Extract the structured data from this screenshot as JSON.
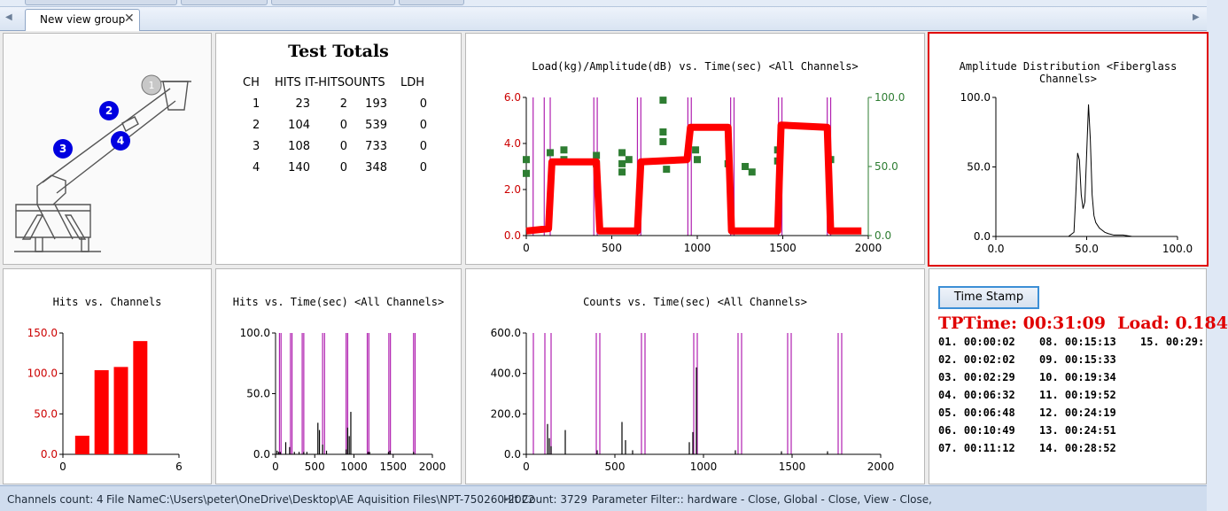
{
  "tab_bar": {
    "active_tab": "New view group",
    "close_glyph": "✕",
    "scroll_left": "◀",
    "scroll_right": "▶"
  },
  "test_totals": {
    "title": "Test Totals",
    "headers": [
      "CH",
      "HITS",
      "IT-HITS",
      "OUNTS",
      "LDH"
    ],
    "rows": [
      [
        "1",
        "23",
        "2",
        "193",
        "0"
      ],
      [
        "2",
        "104",
        "0",
        "539",
        "0"
      ],
      [
        "3",
        "108",
        "0",
        "733",
        "0"
      ],
      [
        "4",
        "140",
        "0",
        "348",
        "0"
      ]
    ]
  },
  "diagram": {
    "sensors": [
      "1",
      "2",
      "3",
      "4"
    ]
  },
  "charts": {
    "load_amp": {
      "title": "Load(kg)/Amplitude(dB) vs. Time(sec) <All Channels>",
      "left_ticks": [
        "6.0",
        "4.0",
        "2.0",
        "0.0"
      ],
      "right_ticks": [
        "100.0",
        "50.0",
        "0.0"
      ],
      "x_ticks": [
        "0",
        "500",
        "1000",
        "1500",
        "2000"
      ],
      "left_color": "#cc0000",
      "right_color": "#2e7d32"
    },
    "amp_dist": {
      "title": "Amplitude Distribution <Fiberglass Channels>",
      "y_ticks": [
        "100.0",
        "50.0",
        "0.0"
      ],
      "x_ticks": [
        "0.0",
        "50.0",
        "100.0"
      ],
      "highlight_color": "#e00000"
    },
    "hits_channels": {
      "title": "Hits vs. Channels",
      "y_ticks": [
        "150.0",
        "100.0",
        "50.0",
        "0.0"
      ],
      "x_ticks": [
        "0",
        "6"
      ]
    },
    "hits_time": {
      "title": "Hits vs. Time(sec) <All Channels>",
      "y_ticks": [
        "100.0",
        "50.0",
        "0.0"
      ],
      "x_ticks": [
        "0",
        "500",
        "1000",
        "1500",
        "2000"
      ]
    },
    "counts_time": {
      "title": "Counts vs. Time(sec) <All Channels>",
      "y_ticks": [
        "600.0",
        "400.0",
        "200.0",
        "0.0"
      ],
      "x_ticks": [
        "0",
        "500",
        "1000",
        "1500",
        "2000"
      ]
    }
  },
  "chart_data": [
    {
      "type": "bar",
      "title": "Hits vs. Channels",
      "categories": [
        "1",
        "2",
        "3",
        "4"
      ],
      "values": [
        23,
        104,
        108,
        140
      ],
      "xlim": [
        0,
        6
      ],
      "ylim": [
        0,
        150
      ],
      "color": "#ff0000"
    },
    {
      "type": "line",
      "title": "Load(kg)/Amplitude(dB) vs. Time(sec) <All Channels>",
      "xlim": [
        0,
        2000
      ],
      "ylim": [
        0,
        6
      ],
      "y2lim": [
        0,
        100
      ],
      "series": [
        {
          "x": [
            0,
            130,
            150,
            410,
            430,
            650,
            670,
            940,
            960,
            1180,
            1200,
            1470,
            1490,
            1760,
            1780,
            1960
          ],
          "values": [
            0.2,
            0.3,
            3.2,
            3.2,
            0.2,
            0.2,
            3.2,
            3.3,
            4.7,
            4.7,
            0.2,
            0.2,
            4.8,
            4.7,
            0.2,
            0.2
          ]
        }
      ]
    },
    {
      "type": "scatter",
      "title": "Load(kg)/Amplitude(dB) vs. Time(sec) <All Channels>",
      "axis": "right",
      "xlim": [
        0,
        2000
      ],
      "ylim": [
        0,
        100
      ],
      "series": [
        {
          "x": [
            0,
            0,
            140,
            220,
            220,
            410,
            410,
            560,
            560,
            560,
            600,
            800,
            800,
            800,
            820,
            990,
            1000,
            1180,
            1280,
            1320,
            1470,
            1470,
            1780
          ],
          "values": [
            55,
            45,
            60,
            55,
            62,
            52,
            58,
            60,
            52,
            46,
            55,
            98,
            75,
            68,
            48,
            62,
            55,
            52,
            50,
            46,
            62,
            54,
            55
          ]
        }
      ]
    },
    {
      "type": "line",
      "title": "Amplitude Distribution <Fiberglass Channels>",
      "xlim": [
        0,
        100
      ],
      "ylim": [
        0,
        100
      ],
      "series": [
        {
          "x": [
            40,
            43,
            44,
            45,
            46,
            47,
            48,
            49,
            50,
            51,
            52,
            53,
            54,
            55,
            56,
            57,
            58,
            60,
            62,
            65,
            70,
            75
          ],
          "values": [
            0,
            3,
            30,
            60,
            55,
            30,
            20,
            25,
            60,
            95,
            70,
            30,
            15,
            10,
            8,
            6,
            5,
            3,
            2,
            1,
            1,
            0
          ]
        }
      ]
    },
    {
      "type": "bar",
      "title": "Hits vs. Time(sec) <All Channels>",
      "xlim": [
        0,
        2000
      ],
      "ylim": [
        0,
        100
      ],
      "x": [
        20,
        40,
        60,
        130,
        180,
        240,
        300,
        360,
        400,
        540,
        560,
        600,
        650,
        900,
        920,
        940,
        960,
        1180,
        1200,
        1440,
        1460,
        1760
      ],
      "values": [
        3,
        2,
        2,
        10,
        6,
        2,
        2,
        2,
        2,
        26,
        20,
        8,
        3,
        4,
        22,
        15,
        35,
        2,
        2,
        2,
        3,
        2
      ]
    },
    {
      "type": "bar",
      "title": "Counts vs. Time(sec) <All Channels>",
      "xlim": [
        0,
        2000
      ],
      "ylim": [
        0,
        600
      ],
      "x": [
        120,
        130,
        140,
        220,
        400,
        540,
        560,
        600,
        920,
        940,
        960,
        1180,
        1440,
        1700
      ],
      "values": [
        150,
        80,
        40,
        120,
        20,
        160,
        70,
        20,
        60,
        110,
        430,
        20,
        15,
        15
      ]
    }
  ],
  "markers": {
    "upper_x": [
      40,
      105,
      140,
      395,
      415,
      650,
      670,
      945,
      965,
      1195,
      1215,
      1475,
      1495,
      1760,
      1780
    ],
    "lower_x": [
      50,
      70,
      190,
      210,
      340,
      360,
      600,
      625,
      900,
      920,
      1170,
      1190,
      1445,
      1465,
      1760,
      1780
    ],
    "color": "#b020b0"
  },
  "time_stamps": {
    "button": "Time Stamp",
    "tp_time": "TPTime: 00:31:09",
    "load": "Load: 0.184",
    "entries": [
      "01.  00:00:02",
      "02.  00:02:02",
      "03.  00:02:29",
      "04.  00:06:32",
      "05.  00:06:48",
      "06.  00:10:49",
      "07.  00:11:12",
      "08.  00:15:13",
      "09.  00:15:33",
      "10.  00:19:34",
      "11.  00:19:52",
      "12.  00:24:19",
      "13.  00:24:51",
      "14.  00:28:52",
      "15.  00:29:"
    ]
  },
  "status_bar": {
    "channels": "Channels count: 4",
    "file": "File NameC:\\Users\\peter\\OneDrive\\Desktop\\AE Aquisition Files\\NPT-750260-2022",
    "hits": "Hit Count: 3729",
    "filter": "Parameter Filter::  hardware - Close,  Global - Close,  View - Close,"
  }
}
